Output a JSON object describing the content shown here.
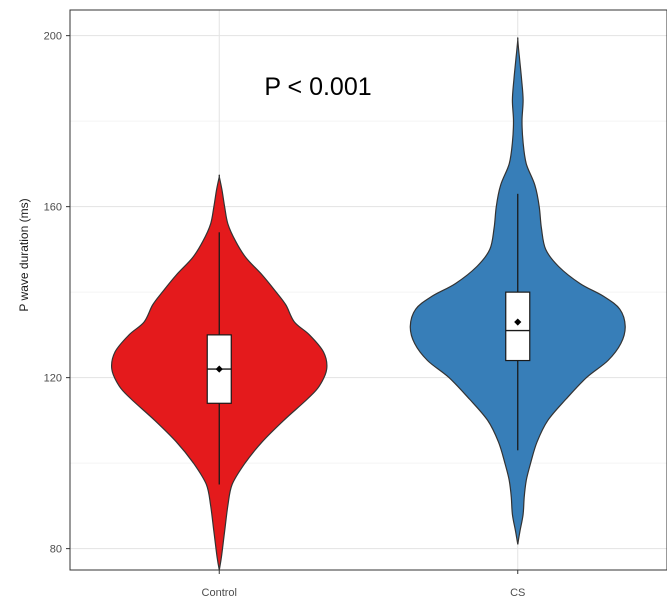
{
  "chart_data": {
    "type": "violin",
    "title": "",
    "xlabel": "",
    "ylabel": "P wave duration (ms)",
    "ylim": [
      75,
      206
    ],
    "y_ticks": [
      80,
      120,
      160,
      200
    ],
    "categories": [
      "Control",
      "CS"
    ],
    "grid": true,
    "annotations": [
      {
        "text": "P < 0.001"
      }
    ],
    "series": [
      {
        "category": "Control",
        "color": "#e41a1c",
        "min": 75,
        "max": 167,
        "whisker_low": 95,
        "q1": 114,
        "median": 122,
        "mean": 122,
        "q3": 130,
        "whisker_high": 154,
        "density_half_width": [
          [
            75,
            0.0
          ],
          [
            78,
            0.02
          ],
          [
            84,
            0.05
          ],
          [
            90,
            0.08
          ],
          [
            95,
            0.12
          ],
          [
            100,
            0.24
          ],
          [
            105,
            0.4
          ],
          [
            110,
            0.6
          ],
          [
            115,
            0.82
          ],
          [
            118,
            0.93
          ],
          [
            122,
            1.0
          ],
          [
            126,
            0.97
          ],
          [
            130,
            0.84
          ],
          [
            133,
            0.7
          ],
          [
            137,
            0.62
          ],
          [
            140,
            0.53
          ],
          [
            144,
            0.4
          ],
          [
            148,
            0.25
          ],
          [
            152,
            0.15
          ],
          [
            156,
            0.08
          ],
          [
            160,
            0.05
          ],
          [
            164,
            0.025
          ],
          [
            167,
            0.0
          ]
        ]
      },
      {
        "category": "CS",
        "color": "#377eb8",
        "min": 81,
        "max": 199,
        "whisker_low": 103,
        "q1": 124,
        "median": 131,
        "mean": 133,
        "q3": 140,
        "whisker_high": 163,
        "density_half_width": [
          [
            81,
            0.0
          ],
          [
            84,
            0.02
          ],
          [
            88,
            0.05
          ],
          [
            92,
            0.06
          ],
          [
            96,
            0.08
          ],
          [
            100,
            0.12
          ],
          [
            105,
            0.18
          ],
          [
            110,
            0.28
          ],
          [
            115,
            0.45
          ],
          [
            120,
            0.64
          ],
          [
            124,
            0.84
          ],
          [
            128,
            0.96
          ],
          [
            132,
            1.0
          ],
          [
            136,
            0.95
          ],
          [
            139,
            0.8
          ],
          [
            142,
            0.58
          ],
          [
            146,
            0.38
          ],
          [
            150,
            0.26
          ],
          [
            155,
            0.22
          ],
          [
            160,
            0.2
          ],
          [
            165,
            0.16
          ],
          [
            170,
            0.08
          ],
          [
            175,
            0.05
          ],
          [
            180,
            0.04
          ],
          [
            185,
            0.05
          ],
          [
            190,
            0.035
          ],
          [
            195,
            0.015
          ],
          [
            199,
            0.0
          ]
        ]
      }
    ]
  }
}
